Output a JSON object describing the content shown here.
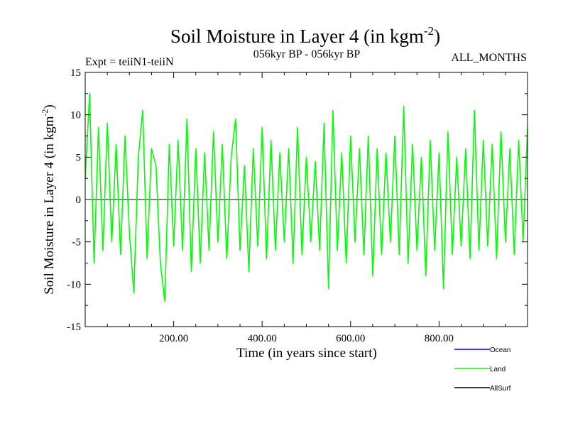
{
  "chart_data": {
    "type": "line",
    "title": "Soil Moisture in Layer 4 (in kgm",
    "title_sup": "-2",
    "title_tail": ")",
    "subtitle_left": "Expt = teiiN1-teiiN",
    "subtitle_center": "056kyr BP - 056kyr BP",
    "subtitle_right": "ALL_MONTHS",
    "xlabel": "Time (in years since start)",
    "ylabel": "Soil Moisture in Layer 4 (in kgm",
    "ylabel_sup": "-2",
    "ylabel_tail": ")",
    "xlim": [
      0,
      1000
    ],
    "ylim": [
      -15,
      15
    ],
    "x_ticks": [
      200,
      400,
      600,
      800
    ],
    "x_tick_labels": [
      "200.00",
      "400.00",
      "600.00",
      "800.00"
    ],
    "y_ticks": [
      -15,
      -10,
      -5,
      0,
      5,
      10,
      15
    ],
    "y_tick_labels": [
      "-15",
      "-10",
      "-5",
      "0",
      "5",
      "10",
      "15"
    ],
    "series": [
      {
        "name": "Land",
        "color": "#00ff00",
        "x": [
          0,
          10,
          20,
          30,
          40,
          50,
          60,
          70,
          80,
          90,
          100,
          110,
          120,
          130,
          140,
          150,
          160,
          170,
          180,
          190,
          200,
          210,
          220,
          230,
          240,
          250,
          260,
          270,
          280,
          290,
          300,
          310,
          320,
          330,
          340,
          350,
          360,
          370,
          380,
          390,
          400,
          410,
          420,
          430,
          440,
          450,
          460,
          470,
          480,
          490,
          500,
          510,
          520,
          530,
          540,
          550,
          560,
          570,
          580,
          590,
          600,
          610,
          620,
          630,
          640,
          650,
          660,
          670,
          680,
          690,
          700,
          710,
          720,
          730,
          740,
          750,
          760,
          770,
          780,
          790,
          800,
          810,
          820,
          830,
          840,
          850,
          860,
          870,
          880,
          890,
          900,
          910,
          920,
          930,
          940,
          950,
          960,
          970,
          980,
          990,
          1000
        ],
        "y": [
          2.5,
          12.5,
          -7.5,
          8.5,
          -6.0,
          9.0,
          -5.0,
          6.5,
          -6.5,
          7.5,
          -4.0,
          -11.0,
          5.0,
          10.5,
          -7.0,
          6.0,
          4.0,
          -7.5,
          -12.0,
          6.5,
          -5.5,
          7.0,
          -6.0,
          9.5,
          -8.5,
          6.0,
          -7.5,
          5.5,
          -6.0,
          8.0,
          -5.0,
          6.5,
          -7.0,
          5.0,
          9.5,
          -6.0,
          4.0,
          -8.5,
          6.0,
          -5.5,
          8.5,
          -7.0,
          7.0,
          -6.0,
          5.5,
          -5.0,
          6.0,
          -7.5,
          8.5,
          -6.5,
          5.0,
          -5.0,
          4.5,
          -6.0,
          9.0,
          -10.5,
          10.5,
          -6.0,
          5.5,
          -7.5,
          7.5,
          -5.0,
          6.0,
          -6.5,
          7.5,
          -9.0,
          6.0,
          -6.5,
          5.5,
          -5.0,
          7.5,
          -6.5,
          11.0,
          -7.5,
          6.5,
          -6.0,
          5.0,
          -9.0,
          7.0,
          -6.0,
          5.5,
          -10.5,
          8.0,
          -6.5,
          5.0,
          -5.5,
          6.0,
          -7.0,
          10.5,
          -6.0,
          7.0,
          -5.5,
          6.5,
          -7.0,
          8.0,
          -5.0,
          6.0,
          -6.5,
          7.0,
          -5.0,
          8.5
        ]
      }
    ],
    "legend_placement": "bottom-right",
    "legend": [
      {
        "label": "Ocean",
        "color": "#0000ff"
      },
      {
        "label": "Land",
        "color": "#00ff00"
      },
      {
        "label": "AllSurf",
        "color": "#000000"
      }
    ],
    "grid": false
  }
}
